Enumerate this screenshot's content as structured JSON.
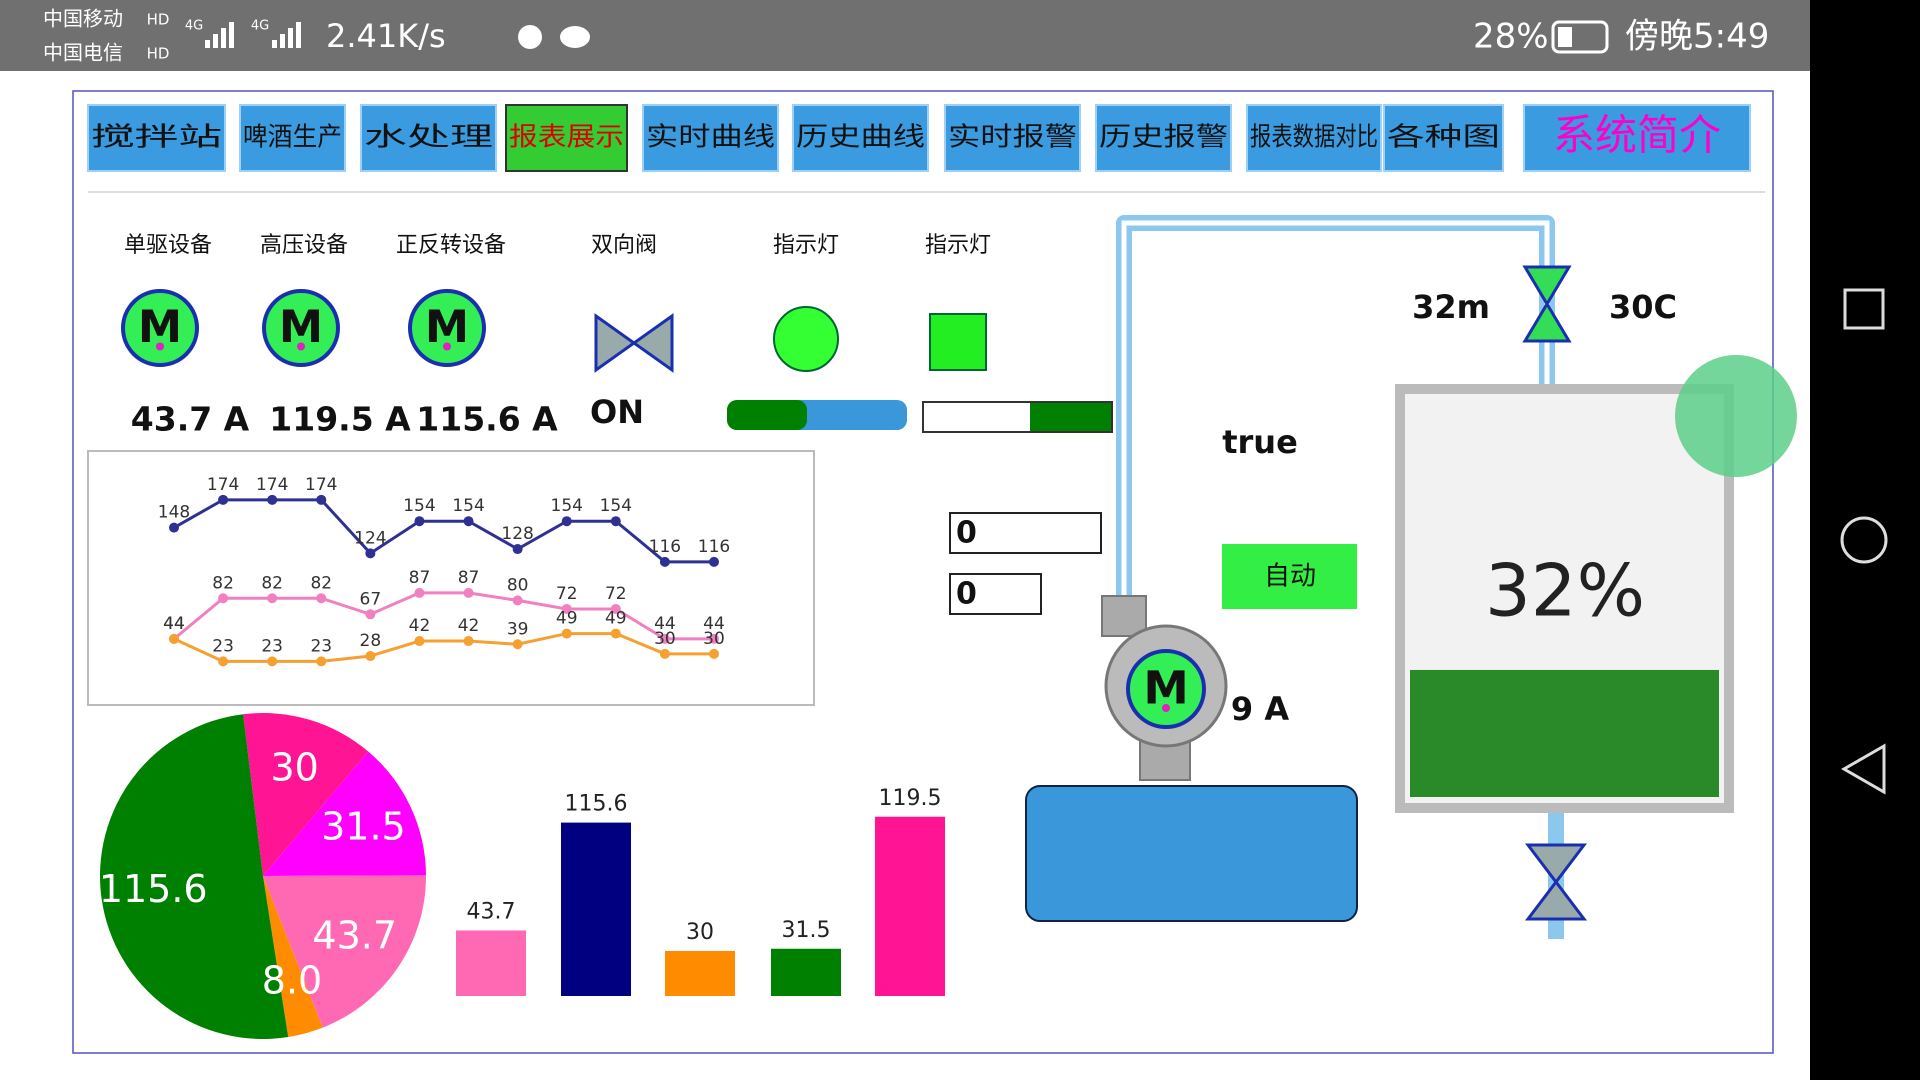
{
  "status_bar": {
    "carrier1": "中国移动",
    "carrier2": "中国电信",
    "hd": "HD",
    "net": "4G",
    "speed": "2.41K/s",
    "battery": "28%",
    "time": "傍晚5:49"
  },
  "tabs": [
    "搅拌站",
    "啤酒生产",
    "水处理",
    "报表展示",
    "实时曲线",
    "历史曲线",
    "实时报警",
    "历史报警",
    "报表数据对比",
    "各种图"
  ],
  "active_tab": 3,
  "intro_button": "系统简介",
  "motor_symbol": "M",
  "devices": [
    {
      "label": "单驱设备",
      "current": "43.7 A"
    },
    {
      "label": "高压设备",
      "current": "119.5 A"
    },
    {
      "label": "正反转设备",
      "current": "115.6 A"
    }
  ],
  "valve": {
    "label": "双向阀",
    "state": "ON"
  },
  "lights": [
    "指示灯",
    "指示灯"
  ],
  "status_text": "true",
  "inputs": [
    "0",
    "0"
  ],
  "auto_button": "自动",
  "pump_current": "9 A",
  "top_valve": {
    "left": "32m",
    "right": "30C"
  },
  "tank": {
    "level": {
      "value": 32,
      "label": "32%"
    }
  },
  "chart_data": [
    {
      "type": "line",
      "categories": [
        null,
        null,
        null,
        null,
        null,
        null,
        null,
        null,
        null,
        null,
        null,
        null
      ],
      "ylim": [
        0,
        200
      ],
      "series": [
        {
          "name": null,
          "color": "#2e3192",
          "values": [
            148,
            174,
            174,
            174,
            124,
            154,
            154,
            128,
            154,
            154,
            116,
            116
          ]
        },
        {
          "name": null,
          "color": "#f080c0",
          "values": [
            44,
            82,
            82,
            82,
            67,
            87,
            87,
            80,
            72,
            72,
            44,
            44
          ]
        },
        {
          "name": null,
          "color": "#f5a030",
          "values": [
            44,
            23,
            23,
            23,
            28,
            42,
            42,
            39,
            49,
            49,
            30,
            30
          ]
        }
      ]
    },
    {
      "type": "pie",
      "values": [
        30,
        31.5,
        43.7,
        8,
        115.6
      ],
      "value_labels": [
        "30",
        "31.5",
        "43.7",
        "8.0",
        "115.6"
      ],
      "colors": [
        "#ff1493",
        "#ff00ff",
        "#ff69b4",
        "#ff8c00",
        "#008000"
      ]
    },
    {
      "type": "bar",
      "categories": [
        null,
        null,
        null,
        null,
        null
      ],
      "values": [
        43.7,
        115.6,
        30,
        31.5,
        119.5
      ],
      "ylim": [
        0,
        140
      ],
      "colors": [
        "#ff69b4",
        "#000080",
        "#ff8c00",
        "#008000",
        "#ff1493"
      ]
    }
  ]
}
